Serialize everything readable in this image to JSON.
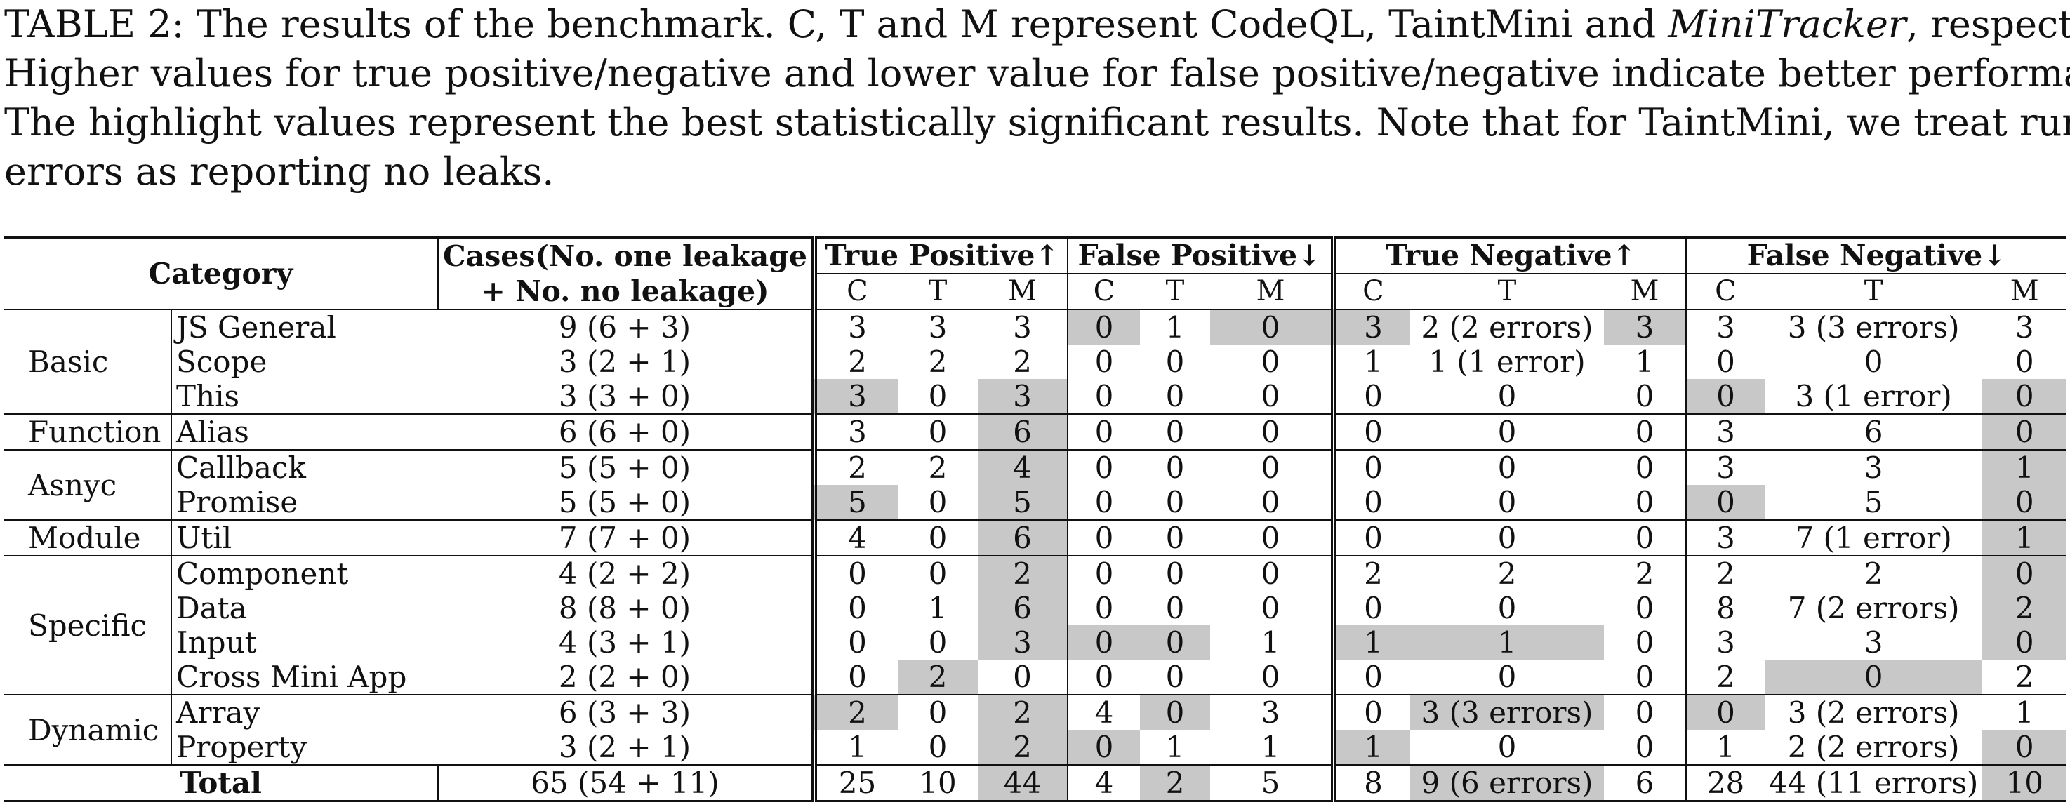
{
  "caption": {
    "line1_a": "TABLE 2: The results of the benchmark. C, T and M represent CodeQL, TaintMini and ",
    "line1_em": "MiniTracker",
    "line1_b": ", respectively.",
    "line2": "Higher values for true positive/negative and lower value for false positive/negative indicate better performance.",
    "line3": "The highlight values represent the best statistically significant results. Note that for TaintMini, we treat runtime",
    "line4": "errors as reporting no leaks."
  },
  "header": {
    "category": "Category",
    "cases_1": "Cases(No. one leakage",
    "cases_2": "+ No. no leakage)",
    "tp": "True Positive↑",
    "fp": "False Positive↓",
    "tn": "True Negative↑",
    "fn": "False Negative↓",
    "c": "C",
    "t": "T",
    "m": "M"
  },
  "groups": [
    "Basic",
    "Function",
    "Asnyc",
    "Module",
    "Specific",
    "Dynamic"
  ],
  "rows": [
    {
      "sub": "JS General",
      "cases": "9 (6 + 3)",
      "tp": [
        "3",
        "3",
        "3"
      ],
      "fp": [
        "0",
        "1",
        "0"
      ],
      "tn": [
        "3",
        "2 (2 errors)",
        "3"
      ],
      "fn": [
        "3",
        "3 (3 errors)",
        "3"
      ]
    },
    {
      "sub": "Scope",
      "cases": "3 (2 + 1)",
      "tp": [
        "2",
        "2",
        "2"
      ],
      "fp": [
        "0",
        "0",
        "0"
      ],
      "tn": [
        "1",
        "1 (1 error)",
        "1"
      ],
      "fn": [
        "0",
        "0",
        "0"
      ]
    },
    {
      "sub": "This",
      "cases": "3 (3 + 0)",
      "tp": [
        "3",
        "0",
        "3"
      ],
      "fp": [
        "0",
        "0",
        "0"
      ],
      "tn": [
        "0",
        "0",
        "0"
      ],
      "fn": [
        "0",
        "3 (1 error)",
        "0"
      ]
    },
    {
      "sub": "Alias",
      "cases": "6 (6 + 0)",
      "tp": [
        "3",
        "0",
        "6"
      ],
      "fp": [
        "0",
        "0",
        "0"
      ],
      "tn": [
        "0",
        "0",
        "0"
      ],
      "fn": [
        "3",
        "6",
        "0"
      ]
    },
    {
      "sub": "Callback",
      "cases": "5 (5 + 0)",
      "tp": [
        "2",
        "2",
        "4"
      ],
      "fp": [
        "0",
        "0",
        "0"
      ],
      "tn": [
        "0",
        "0",
        "0"
      ],
      "fn": [
        "3",
        "3",
        "1"
      ]
    },
    {
      "sub": "Promise",
      "cases": "5 (5 + 0)",
      "tp": [
        "5",
        "0",
        "5"
      ],
      "fp": [
        "0",
        "0",
        "0"
      ],
      "tn": [
        "0",
        "0",
        "0"
      ],
      "fn": [
        "0",
        "5",
        "0"
      ]
    },
    {
      "sub": "Util",
      "cases": "7 (7 + 0)",
      "tp": [
        "4",
        "0",
        "6"
      ],
      "fp": [
        "0",
        "0",
        "0"
      ],
      "tn": [
        "0",
        "0",
        "0"
      ],
      "fn": [
        "3",
        "7 (1 error)",
        "1"
      ]
    },
    {
      "sub": "Component",
      "cases": "4 (2 + 2)",
      "tp": [
        "0",
        "0",
        "2"
      ],
      "fp": [
        "0",
        "0",
        "0"
      ],
      "tn": [
        "2",
        "2",
        "2"
      ],
      "fn": [
        "2",
        "2",
        "0"
      ]
    },
    {
      "sub": "Data",
      "cases": "8 (8 + 0)",
      "tp": [
        "0",
        "1",
        "6"
      ],
      "fp": [
        "0",
        "0",
        "0"
      ],
      "tn": [
        "0",
        "0",
        "0"
      ],
      "fn": [
        "8",
        "7 (2 errors)",
        "2"
      ]
    },
    {
      "sub": "Input",
      "cases": "4 (3 + 1)",
      "tp": [
        "0",
        "0",
        "3"
      ],
      "fp": [
        "0",
        "0",
        "1"
      ],
      "tn": [
        "1",
        "1",
        "0"
      ],
      "fn": [
        "3",
        "3",
        "0"
      ]
    },
    {
      "sub": "Cross Mini App",
      "cases": "2 (2 + 0)",
      "tp": [
        "0",
        "2",
        "0"
      ],
      "fp": [
        "0",
        "0",
        "0"
      ],
      "tn": [
        "0",
        "0",
        "0"
      ],
      "fn": [
        "2",
        "0",
        "2"
      ]
    },
    {
      "sub": "Array",
      "cases": "6 (3 + 3)",
      "tp": [
        "2",
        "0",
        "2"
      ],
      "fp": [
        "4",
        "0",
        "3"
      ],
      "tn": [
        "0",
        "3 (3 errors)",
        "0"
      ],
      "fn": [
        "0",
        "3 (2 errors)",
        "1"
      ]
    },
    {
      "sub": "Property",
      "cases": "3 (2 + 1)",
      "tp": [
        "1",
        "0",
        "2"
      ],
      "fp": [
        "0",
        "1",
        "1"
      ],
      "tn": [
        "1",
        "0",
        "0"
      ],
      "fn": [
        "1",
        "2 (2 errors)",
        "0"
      ]
    }
  ],
  "total": {
    "label": "Total",
    "cases": "65 (54 + 11)",
    "tp": [
      "25",
      "10",
      "44"
    ],
    "fp": [
      "4",
      "2",
      "5"
    ],
    "tn": [
      "8",
      "9 (6 errors)",
      "6"
    ],
    "fn": [
      "28",
      "44 (11 errors)",
      "10"
    ]
  }
}
